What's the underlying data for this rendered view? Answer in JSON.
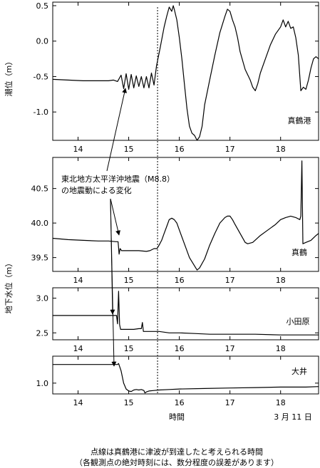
{
  "figure": {
    "ylabel_tide": "潮位（m）",
    "ylabel_groundwater": "地下水位（m）",
    "xlabel": "時間",
    "date_label": "3 月 11 日",
    "caption_line1": "点線は真鶴港に津波が到達したと考えられる時間",
    "caption_line2": "（各観測点の絶対時刻には、数分程度の誤差があります）",
    "annotation_line1": "東北地方太平洋沖地震（M8.8）",
    "annotation_line2": "の地震動による変化"
  },
  "colors": {
    "line": "#000000",
    "background": "#ffffff"
  },
  "chart_data": [
    {
      "type": "line",
      "panel": "tide",
      "series_label": "真鶴港",
      "xlim": [
        13.5,
        18.75
      ],
      "ylim": [
        -1.4,
        0.55
      ],
      "xticks": [
        14,
        15,
        16,
        17,
        18
      ],
      "yticks": [
        -1.0,
        -0.5,
        0.0,
        0.5
      ],
      "ytick_labels": [
        "-1.0",
        "-0.5",
        "0.0",
        "0.5"
      ],
      "points": [
        [
          13.5,
          -0.54
        ],
        [
          13.8,
          -0.55
        ],
        [
          14.1,
          -0.56
        ],
        [
          14.4,
          -0.56
        ],
        [
          14.6,
          -0.56
        ],
        [
          14.7,
          -0.55
        ],
        [
          14.78,
          -0.57
        ],
        [
          14.85,
          -0.48
        ],
        [
          14.9,
          -0.67
        ],
        [
          14.95,
          -0.46
        ],
        [
          15.0,
          -0.68
        ],
        [
          15.05,
          -0.47
        ],
        [
          15.1,
          -0.66
        ],
        [
          15.15,
          -0.49
        ],
        [
          15.2,
          -0.64
        ],
        [
          15.25,
          -0.5
        ],
        [
          15.3,
          -0.66
        ],
        [
          15.35,
          -0.5
        ],
        [
          15.4,
          -0.66
        ],
        [
          15.45,
          -0.45
        ],
        [
          15.5,
          -0.62
        ],
        [
          15.55,
          -0.35
        ],
        [
          15.62,
          -0.1
        ],
        [
          15.7,
          0.2
        ],
        [
          15.75,
          0.35
        ],
        [
          15.8,
          0.48
        ],
        [
          15.85,
          0.42
        ],
        [
          15.88,
          0.5
        ],
        [
          15.9,
          0.45
        ],
        [
          15.95,
          0.3
        ],
        [
          16.0,
          0.05
        ],
        [
          16.05,
          -0.25
        ],
        [
          16.1,
          -0.6
        ],
        [
          16.15,
          -0.95
        ],
        [
          16.2,
          -1.2
        ],
        [
          16.25,
          -1.3
        ],
        [
          16.3,
          -1.33
        ],
        [
          16.35,
          -1.4
        ],
        [
          16.4,
          -1.35
        ],
        [
          16.45,
          -1.2
        ],
        [
          16.5,
          -0.9
        ],
        [
          16.6,
          -0.55
        ],
        [
          16.7,
          -0.2
        ],
        [
          16.8,
          0.12
        ],
        [
          16.9,
          0.35
        ],
        [
          16.95,
          0.45
        ],
        [
          17.0,
          0.42
        ],
        [
          17.05,
          0.3
        ],
        [
          17.1,
          0.2
        ],
        [
          17.15,
          0.05
        ],
        [
          17.2,
          -0.15
        ],
        [
          17.3,
          -0.4
        ],
        [
          17.4,
          -0.55
        ],
        [
          17.45,
          -0.65
        ],
        [
          17.5,
          -0.7
        ],
        [
          17.55,
          -0.6
        ],
        [
          17.6,
          -0.45
        ],
        [
          17.7,
          -0.25
        ],
        [
          17.8,
          -0.05
        ],
        [
          17.9,
          0.1
        ],
        [
          18.0,
          0.2
        ],
        [
          18.05,
          0.3
        ],
        [
          18.1,
          0.2
        ],
        [
          18.15,
          0.28
        ],
        [
          18.2,
          0.18
        ],
        [
          18.25,
          0.2
        ],
        [
          18.3,
          0.05
        ],
        [
          18.35,
          -0.2
        ],
        [
          18.4,
          -0.7
        ],
        [
          18.45,
          -0.65
        ],
        [
          18.5,
          -0.68
        ],
        [
          18.55,
          -0.55
        ],
        [
          18.6,
          -0.38
        ],
        [
          18.65,
          -0.25
        ],
        [
          18.7,
          -0.22
        ],
        [
          18.75,
          -0.25
        ]
      ]
    },
    {
      "type": "line",
      "panel": "groundwater-manazuru",
      "series_label": "真鶴",
      "xlim": [
        13.5,
        18.75
      ],
      "ylim": [
        39.3,
        40.95
      ],
      "xticks": [
        14,
        15,
        16,
        17,
        18
      ],
      "yticks": [
        39.5,
        40.0,
        40.5
      ],
      "ytick_labels": [
        "39.5",
        "40.0",
        "40.5"
      ],
      "points": [
        [
          13.5,
          39.78
        ],
        [
          13.8,
          39.76
        ],
        [
          14.1,
          39.75
        ],
        [
          14.4,
          39.74
        ],
        [
          14.6,
          39.74
        ],
        [
          14.75,
          39.73
        ],
        [
          14.79,
          39.73
        ],
        [
          14.81,
          39.55
        ],
        [
          14.83,
          39.63
        ],
        [
          14.86,
          39.6
        ],
        [
          15.0,
          39.6
        ],
        [
          15.2,
          39.6
        ],
        [
          15.35,
          39.59
        ],
        [
          15.42,
          39.6
        ],
        [
          15.5,
          39.63
        ],
        [
          15.56,
          39.63
        ],
        [
          15.6,
          39.68
        ],
        [
          15.65,
          39.75
        ],
        [
          15.7,
          39.85
        ],
        [
          15.75,
          39.95
        ],
        [
          15.8,
          40.05
        ],
        [
          15.85,
          40.07
        ],
        [
          15.9,
          40.05
        ],
        [
          15.95,
          40.0
        ],
        [
          16.0,
          39.9
        ],
        [
          16.1,
          39.7
        ],
        [
          16.2,
          39.5
        ],
        [
          16.3,
          39.38
        ],
        [
          16.35,
          39.32
        ],
        [
          16.4,
          39.35
        ],
        [
          16.5,
          39.48
        ],
        [
          16.6,
          39.68
        ],
        [
          16.7,
          39.85
        ],
        [
          16.8,
          40.0
        ],
        [
          16.9,
          40.08
        ],
        [
          16.95,
          40.1
        ],
        [
          17.0,
          40.1
        ],
        [
          17.05,
          40.05
        ],
        [
          17.1,
          39.98
        ],
        [
          17.2,
          39.85
        ],
        [
          17.3,
          39.72
        ],
        [
          17.35,
          39.7
        ],
        [
          17.45,
          39.72
        ],
        [
          17.6,
          39.82
        ],
        [
          17.75,
          39.9
        ],
        [
          17.9,
          39.98
        ],
        [
          18.0,
          40.05
        ],
        [
          18.1,
          40.08
        ],
        [
          18.2,
          40.1
        ],
        [
          18.3,
          40.08
        ],
        [
          18.38,
          40.05
        ],
        [
          18.4,
          40.1
        ],
        [
          18.42,
          40.9
        ],
        [
          18.44,
          39.7
        ],
        [
          18.5,
          39.72
        ],
        [
          18.6,
          39.75
        ],
        [
          18.7,
          39.82
        ],
        [
          18.75,
          39.85
        ]
      ]
    },
    {
      "type": "line",
      "panel": "groundwater-odawara",
      "series_label": "小田原",
      "xlim": [
        13.5,
        18.75
      ],
      "ylim": [
        2.4,
        3.15
      ],
      "xticks": [
        14,
        15,
        16,
        17,
        18
      ],
      "yticks": [
        2.5,
        3.0
      ],
      "ytick_labels": [
        "2.5",
        "3.0"
      ],
      "points": [
        [
          13.5,
          2.75
        ],
        [
          14.0,
          2.75
        ],
        [
          14.5,
          2.75
        ],
        [
          14.76,
          2.75
        ],
        [
          14.78,
          2.63
        ],
        [
          14.8,
          3.1
        ],
        [
          14.82,
          2.62
        ],
        [
          14.84,
          2.55
        ],
        [
          14.9,
          2.55
        ],
        [
          15.0,
          2.55
        ],
        [
          15.1,
          2.55
        ],
        [
          15.2,
          2.56
        ],
        [
          15.25,
          2.56
        ],
        [
          15.27,
          2.65
        ],
        [
          15.29,
          2.52
        ],
        [
          15.4,
          2.52
        ],
        [
          15.6,
          2.52
        ],
        [
          15.8,
          2.5
        ],
        [
          16.0,
          2.5
        ],
        [
          16.3,
          2.49
        ],
        [
          16.6,
          2.48
        ],
        [
          17.0,
          2.48
        ],
        [
          17.5,
          2.48
        ],
        [
          18.0,
          2.47
        ],
        [
          18.5,
          2.47
        ],
        [
          18.75,
          2.47
        ]
      ]
    },
    {
      "type": "line",
      "panel": "groundwater-oi",
      "series_label": "大井",
      "xlim": [
        13.5,
        18.75
      ],
      "ylim": [
        0.78,
        1.55
      ],
      "xticks": [
        14,
        15,
        16,
        17,
        18
      ],
      "yticks": [
        1.0
      ],
      "ytick_labels": [
        "1.0"
      ],
      "points": [
        [
          13.5,
          1.38
        ],
        [
          14.0,
          1.38
        ],
        [
          14.5,
          1.38
        ],
        [
          14.78,
          1.38
        ],
        [
          14.8,
          1.4
        ],
        [
          14.85,
          1.25
        ],
        [
          14.9,
          1.0
        ],
        [
          14.95,
          0.88
        ],
        [
          15.0,
          0.84
        ],
        [
          15.05,
          0.83
        ],
        [
          15.1,
          0.86
        ],
        [
          15.15,
          0.87
        ],
        [
          15.2,
          0.86
        ],
        [
          15.25,
          0.87
        ],
        [
          15.3,
          0.85
        ],
        [
          15.32,
          0.8
        ],
        [
          15.35,
          0.82
        ],
        [
          15.4,
          0.84
        ],
        [
          15.5,
          0.85
        ],
        [
          15.6,
          0.86
        ],
        [
          15.8,
          0.87
        ],
        [
          16.0,
          0.88
        ],
        [
          16.5,
          0.89
        ],
        [
          17.0,
          0.9
        ],
        [
          17.5,
          0.91
        ],
        [
          18.0,
          0.92
        ],
        [
          18.5,
          0.92
        ],
        [
          18.75,
          0.93
        ]
      ]
    }
  ]
}
